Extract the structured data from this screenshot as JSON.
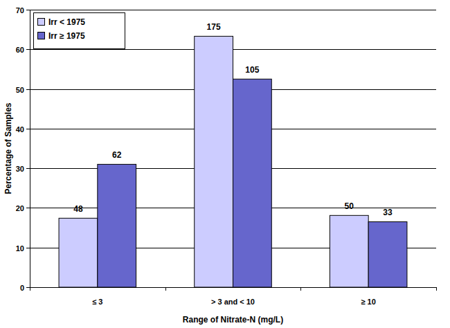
{
  "chart_data": {
    "type": "bar",
    "categories": [
      "≤ 3",
      "> 3 and < 10",
      "≥ 10"
    ],
    "x_label": "Range of Nitrate-N (mg/L)",
    "y_label": "Percentage of Samples",
    "series": [
      {
        "name": "Irr < 1975",
        "color": "#ccccff",
        "values": [
          17.4,
          63.3,
          18.1
        ],
        "counts": [
          48,
          175,
          50
        ]
      },
      {
        "name": "Irr ≥ 1975",
        "color": "#6666cc",
        "values": [
          31.0,
          52.5,
          16.5
        ],
        "counts": [
          62,
          105,
          33
        ]
      }
    ],
    "ylim": [
      0,
      70
    ],
    "yticks": [
      0,
      10,
      20,
      30,
      40,
      50,
      60,
      70
    ],
    "grid": true,
    "legend": "upper left"
  }
}
